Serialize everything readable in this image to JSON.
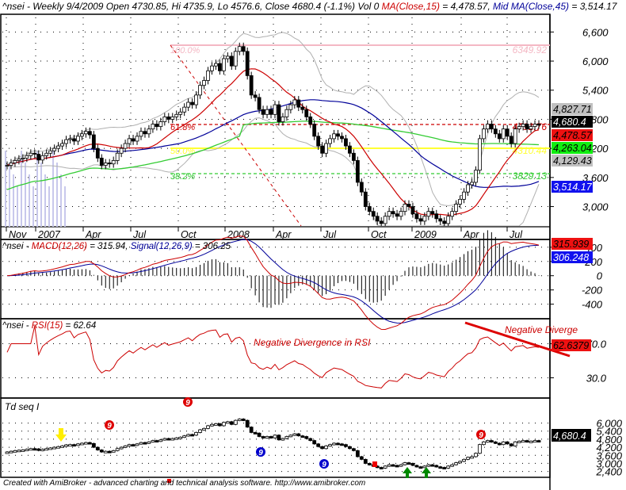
{
  "header": {
    "symbol": "^nsei",
    "prefix": "^nsei - Weekly 9/4/2009 Open 4730.85, Hi 4735.9, Lo 4576.6, Close 4680.4 (-1.1%) Vol 0 ",
    "ma15_label": "MA(Close,15)",
    "ma15_value": " = 4,478.57, ",
    "mid_ma_label": "Mid MA(Close,45)",
    "mid_ma_value": " = 3,514.17"
  },
  "macd_header": {
    "prefix": "^nsei - ",
    "macd_label": "MACD(12,26)",
    "macd_value": " = 315.94, ",
    "signal_label": "Signal(12,26,9)",
    "signal_value": " = 306.25"
  },
  "rsi_header": {
    "prefix": "^nsei - ",
    "rsi_label": "RSI(15)",
    "rsi_value": " = 62.64"
  },
  "td_header": {
    "label": "Td seq I"
  },
  "footer": {
    "text": "Created with AmiBroker - advanced charting and technical analysis software. http://www.amibroker.com"
  },
  "annotations": {
    "rsi_div_1": "Negative Divergence in RSI",
    "rsi_div_2": "Negative Diverge"
  },
  "colors": {
    "ma15": "#cc0000",
    "mid_ma45": "#000099",
    "ma_long": "#33cc33",
    "bollinger": "#b0b0b0",
    "fib_100": "#f4b8c4",
    "fib_618": "#cc0000",
    "fib_50": "#ffff33",
    "fib_382": "#33cc33",
    "rsi_line": "#cc0000",
    "volume": "#c8c8ec"
  },
  "chart_data": [
    {
      "type": "candlestick",
      "title": "^nsei - Weekly 9/4/2009 Open 4730.85, Hi 4735.9, Lo 4576.6, Close 4680.4 (-1.1%) Vol 0",
      "x_ticks": [
        "Nov",
        "2007",
        "Apr",
        "Jul",
        "Oct",
        "2008",
        "Apr",
        "Jul",
        "Oct",
        "2009",
        "Apr",
        "Jul"
      ],
      "y_ticks": [
        3000,
        3600,
        4200,
        4800,
        5400,
        6000,
        6600
      ],
      "y_tick_labels": [
        "3,000",
        "3,600",
        "4,200",
        "4,800",
        "5,400",
        "6,000",
        "6,600"
      ],
      "ylim": [
        2600,
        6900
      ],
      "close_series": [
        3850,
        3900,
        3950,
        3980,
        4000,
        4050,
        4100,
        4080,
        3960,
        4050,
        4100,
        4150,
        4200,
        4250,
        4300,
        4380,
        4400,
        4350,
        4450,
        4500,
        4550,
        4480,
        4200,
        4000,
        3850,
        3900,
        3880,
        3950,
        4100,
        4200,
        4300,
        4400,
        4350,
        4450,
        4550,
        4500,
        4600,
        4700,
        4650,
        4750,
        4850,
        4800,
        4850,
        4900,
        4950,
        5050,
        5150,
        5100,
        5300,
        5500,
        5600,
        5800,
        5900,
        5950,
        5800,
        6050,
        6100,
        5900,
        6200,
        6300,
        6200,
        5700,
        5300,
        5250,
        5000,
        4900,
        5000,
        4900,
        5100,
        4750,
        4850,
        5000,
        5100,
        5200,
        5050,
        5000,
        4850,
        4700,
        4450,
        4250,
        4100,
        4300,
        4400,
        4500,
        4450,
        4400,
        4250,
        4100,
        3950,
        3500,
        3300,
        3000,
        2900,
        2800,
        2700,
        2650,
        2800,
        2900,
        2850,
        2800,
        2900,
        3050,
        3000,
        2850,
        2750,
        2700,
        2800,
        2900,
        2850,
        2750,
        2700,
        2650,
        2800,
        2900,
        3050,
        3150,
        3300,
        3450,
        3500,
        3750,
        4400,
        4600,
        4700,
        4600,
        4500,
        4400,
        4600,
        4450,
        4300,
        4600,
        4650,
        4700,
        4600,
        4650,
        4700,
        4680
      ],
      "series": [
        {
          "name": "MA(Close,15)",
          "last": 4478.57
        },
        {
          "name": "Mid MA(Close,45)",
          "last": 3514.17
        },
        {
          "name": "Long MA (green)",
          "last": 4263.04
        },
        {
          "name": "Bollinger Upper",
          "last": 4827.71
        },
        {
          "name": "Bollinger Lower",
          "last": 4129.43
        }
      ],
      "fibonacci": [
        {
          "level": "100.0%",
          "price": 6349.92
        },
        {
          "level": "61.8%",
          "price": 4791.76
        },
        {
          "level": "50.0%",
          "price": 4310.44
        },
        {
          "level": "38.2%",
          "price": 3829.13
        }
      ],
      "value_labels": [
        {
          "text": "4,827.71",
          "bg": "#c0c0c0",
          "fg": "#000"
        },
        {
          "text": "4,680.4",
          "bg": "#000000",
          "fg": "#fff"
        },
        {
          "text": "4,478.57",
          "bg": "#ee1111",
          "fg": "#000"
        },
        {
          "text": "4,263.04",
          "bg": "#11ee11",
          "fg": "#000"
        },
        {
          "text": "4,129.43",
          "bg": "#c0c0c0",
          "fg": "#000"
        },
        {
          "text": "3,514.17",
          "bg": "#1111ee",
          "fg": "#fff"
        }
      ]
    },
    {
      "type": "line",
      "title": "MACD(12,26) = 315.94, Signal(12,26,9) = 306.25",
      "y_ticks": [
        -400,
        -200,
        0,
        200,
        400
      ],
      "y_tick_labels": [
        "-400",
        "-200",
        "0",
        "200",
        "400"
      ],
      "ylim": [
        -560,
        420
      ],
      "series": [
        {
          "name": "MACD(12,26)",
          "last": 315.939
        },
        {
          "name": "Signal(12,26,9)",
          "last": 306.248
        }
      ],
      "value_labels": [
        {
          "text": "315.939",
          "bg": "#ee1111",
          "fg": "#000"
        },
        {
          "text": "306.248",
          "bg": "#1111ee",
          "fg": "#fff"
        }
      ]
    },
    {
      "type": "line",
      "title": "RSI(15) = 62.64",
      "y_ticks": [
        30.0,
        70.0
      ],
      "y_tick_labels": [
        "30.0",
        "70.0"
      ],
      "ylim": [
        10,
        90
      ],
      "series": [
        {
          "name": "RSI(15)",
          "last": 62.6379
        }
      ],
      "value_labels": [
        {
          "text": "62.6379",
          "bg": "#ee1111",
          "fg": "#000"
        }
      ],
      "annotations": [
        "Negative Divergence in RSI",
        "Negative Diverge"
      ]
    },
    {
      "type": "candlestick",
      "title": "Td seq I",
      "y_ticks": [
        2400,
        3000,
        3600,
        4200,
        4800,
        5400,
        6000
      ],
      "y_tick_labels": [
        "2,400",
        "3,000",
        "3,600",
        "4,200",
        "4,800",
        "5,400",
        "6,000"
      ],
      "value_labels": [
        {
          "text": "4,680.4",
          "bg": "#000000",
          "fg": "#fff"
        }
      ],
      "markers": [
        {
          "type": "sell-9",
          "color": "#dd0000",
          "label": "9"
        },
        {
          "type": "sell-9",
          "color": "#dd0000",
          "label": "9"
        },
        {
          "type": "buy-9",
          "color": "#0000cc",
          "label": "9"
        },
        {
          "type": "buy-9",
          "color": "#0000cc",
          "label": "9"
        },
        {
          "type": "sell-9",
          "color": "#dd0000",
          "label": "9"
        },
        {
          "type": "arrow-down",
          "color": "#ffee00"
        },
        {
          "type": "arrow-up",
          "color": "#008800"
        },
        {
          "type": "arrow-up",
          "color": "#008800"
        }
      ]
    }
  ]
}
